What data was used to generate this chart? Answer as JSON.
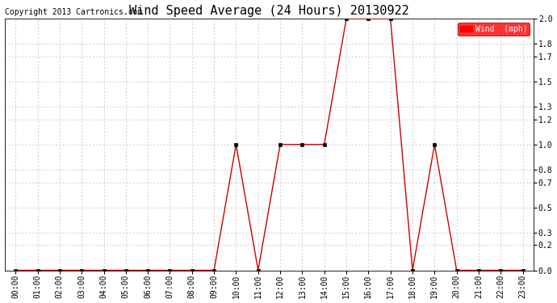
{
  "title": "Wind Speed Average (24 Hours) 20130922",
  "copyright": "Copyright 2013 Cartronics.com",
  "legend_label": "Wind  (mph)",
  "legend_bg": "#ff0000",
  "legend_text_color": "#ffffff",
  "line_color": "#cc0000",
  "marker_color": "#000000",
  "bg_color": "#ffffff",
  "plot_bg": "#ffffff",
  "grid_color": "#bbbbbb",
  "hours": [
    0,
    1,
    2,
    3,
    4,
    5,
    6,
    7,
    8,
    9,
    10,
    11,
    12,
    13,
    14,
    15,
    16,
    17,
    18,
    19,
    20,
    21,
    22,
    23
  ],
  "values": [
    0.0,
    0.0,
    0.0,
    0.0,
    0.0,
    0.0,
    0.0,
    0.0,
    0.0,
    0.0,
    1.0,
    0.0,
    1.0,
    1.0,
    1.0,
    2.0,
    2.0,
    2.0,
    0.0,
    1.0,
    0.0,
    0.0,
    0.0,
    0.0
  ],
  "xlabels": [
    "00:00",
    "01:00",
    "02:00",
    "03:00",
    "04:00",
    "05:00",
    "06:00",
    "07:00",
    "08:00",
    "09:00",
    "10:00",
    "11:00",
    "12:00",
    "13:00",
    "14:00",
    "15:00",
    "16:00",
    "17:00",
    "18:00",
    "19:00",
    "20:00",
    "21:00",
    "22:00",
    "23:00"
  ],
  "yticks": [
    0.0,
    0.2,
    0.3,
    0.5,
    0.7,
    0.8,
    1.0,
    1.2,
    1.3,
    1.5,
    1.7,
    1.8,
    2.0
  ],
  "ytick_labels": [
    "0.0",
    "0.2",
    "0.3",
    "0.5",
    "0.7",
    "0.8",
    "1.0",
    "1.2",
    "1.3",
    "1.5",
    "1.7",
    "1.8",
    "2.0"
  ],
  "ylim": [
    0.0,
    2.0
  ],
  "title_fontsize": 11,
  "tick_fontsize": 7,
  "copyright_fontsize": 7
}
